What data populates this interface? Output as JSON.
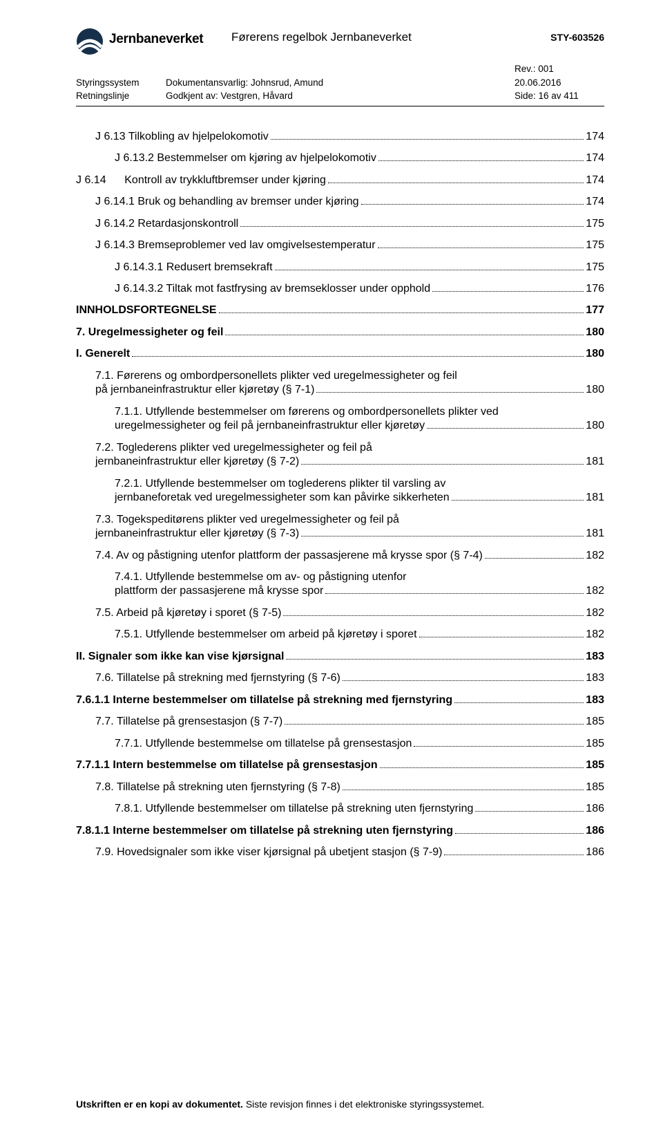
{
  "header": {
    "org_name": "Jernbaneverket",
    "doc_title": "Førerens regelbok Jernbaneverket",
    "doc_ref": "STY-603526",
    "meta": [
      {
        "l": "",
        "m": "",
        "r": "Rev.: 001"
      },
      {
        "l": "Styringssystem",
        "m": "Dokumentansvarlig: Johnsrud, Amund",
        "r": "20.06.2016"
      },
      {
        "l": "Retningslinje",
        "m": "Godkjent av: Vestgren, Håvard",
        "r": "Side: 16 av 411"
      }
    ]
  },
  "toc": [
    {
      "indent": 1,
      "bold": false,
      "label": "J 6.13 Tilkobling av hjelpelokomotiv",
      "page": "174"
    },
    {
      "indent": 2,
      "bold": false,
      "label": "J 6.13.2 Bestemmelser om kjøring av hjelpelokomotiv",
      "page": "174"
    },
    {
      "indent": 0,
      "bold": false,
      "label": "J 6.14      Kontroll av trykkluftbremser under kjøring",
      "page": "174"
    },
    {
      "indent": 1,
      "bold": false,
      "label": "J 6.14.1 Bruk og behandling av bremser under kjøring",
      "page": "174"
    },
    {
      "indent": 1,
      "bold": false,
      "label": "J 6.14.2 Retardasjonskontroll",
      "page": "175"
    },
    {
      "indent": 1,
      "bold": false,
      "label": "J 6.14.3 Bremseproblemer ved lav omgivelsestemperatur",
      "page": "175"
    },
    {
      "indent": 2,
      "bold": false,
      "label": "J 6.14.3.1 Redusert bremsekraft",
      "page": "175"
    },
    {
      "indent": 2,
      "bold": false,
      "label": "J 6.14.3.2 Tiltak mot fastfrysing av bremseklosser under opphold",
      "page": "176"
    },
    {
      "indent": 0,
      "bold": true,
      "label": "INNHOLDSFORTEGNELSE",
      "page": "177"
    },
    {
      "indent": 0,
      "bold": true,
      "label": "7. Uregelmessigheter og feil",
      "page": "180"
    },
    {
      "indent": 0,
      "bold": true,
      "label": "I. Generelt",
      "page": "180"
    },
    {
      "indent": 1,
      "bold": false,
      "label": "7.1. Førerens og ombordpersonellets plikter ved uregelmessigheter og feil på jernbaneinfrastruktur eller kjøretøy (§ 7-1)",
      "page": "180",
      "wrap": true
    },
    {
      "indent": 2,
      "bold": false,
      "label": "7.1.1. Utfyllende bestemmelser om førerens og ombordpersonellets plikter ved uregelmessigheter og feil på jernbaneinfrastruktur eller kjøretøy",
      "page": "180",
      "wrap": true
    },
    {
      "indent": 1,
      "bold": false,
      "label": "7.2. Toglederens plikter ved uregelmessigheter og feil på jernbaneinfrastruktur eller kjøretøy (§ 7-2)",
      "page": "181",
      "wrap": true
    },
    {
      "indent": 2,
      "bold": false,
      "label": "7.2.1. Utfyllende bestemmelser om toglederens plikter til varsling av jernbaneforetak ved uregelmessigheter som kan påvirke sikkerheten",
      "page": "181",
      "wrap": true
    },
    {
      "indent": 1,
      "bold": false,
      "label": "7.3. Togekspeditørens plikter ved uregelmessigheter og feil på jernbaneinfrastruktur eller kjøretøy (§ 7-3)",
      "page": "181",
      "wrap": true
    },
    {
      "indent": 1,
      "bold": false,
      "label": "7.4. Av og påstigning utenfor plattform der passasjerene må krysse spor (§ 7-4)",
      "page": "182"
    },
    {
      "indent": 2,
      "bold": false,
      "label": "7.4.1. Utfyllende bestemmelse om av- og påstigning utenfor plattform der passasjerene må krysse spor",
      "page": "182",
      "wrap": true
    },
    {
      "indent": 1,
      "bold": false,
      "label": "7.5. Arbeid på kjøretøy i sporet (§ 7-5)",
      "page": "182"
    },
    {
      "indent": 2,
      "bold": false,
      "label": "7.5.1. Utfyllende bestemmelser om arbeid på kjøretøy i sporet",
      "page": "182"
    },
    {
      "indent": 0,
      "bold": true,
      "label": "II. Signaler som ikke kan vise kjørsignal",
      "page": "183"
    },
    {
      "indent": 1,
      "bold": false,
      "label": "7.6. Tillatelse på strekning med fjernstyring (§ 7-6)",
      "page": "183"
    },
    {
      "indent": 0,
      "bold": true,
      "label": "7.6.1.1 Interne bestemmelser om tillatelse på strekning med fjernstyring",
      "page": "183"
    },
    {
      "indent": 1,
      "bold": false,
      "label": "7.7. Tillatelse på grensestasjon (§ 7-7)",
      "page": "185"
    },
    {
      "indent": 2,
      "bold": false,
      "label": "7.7.1. Utfyllende bestemmelse om tillatelse på grensestasjon",
      "page": "185"
    },
    {
      "indent": 0,
      "bold": true,
      "label": "7.7.1.1 Intern bestemmelse om tillatelse på grensestasjon",
      "page": "185"
    },
    {
      "indent": 1,
      "bold": false,
      "label": "7.8. Tillatelse på strekning uten fjernstyring (§ 7-8)",
      "page": "185"
    },
    {
      "indent": 2,
      "bold": false,
      "label": "7.8.1. Utfyllende bestemmelser om tillatelse på strekning uten fjernstyring",
      "page": "186"
    },
    {
      "indent": 0,
      "bold": true,
      "label": "7.8.1.1 Interne bestemmelser om tillatelse på strekning uten fjernstyring",
      "page": "186"
    },
    {
      "indent": 1,
      "bold": false,
      "label": "7.9. Hovedsignaler som ikke viser kjørsignal på ubetjent stasjon (§ 7-9)",
      "page": "186"
    }
  ],
  "footer": {
    "bold": "Utskriften er en kopi av dokumentet.",
    "rest": " Siste revisjon finnes i det elektroniske styringssystemet."
  },
  "colors": {
    "text": "#000000",
    "bg": "#ffffff",
    "logo_dark": "#17304a",
    "logo_light": "#ffffff"
  }
}
